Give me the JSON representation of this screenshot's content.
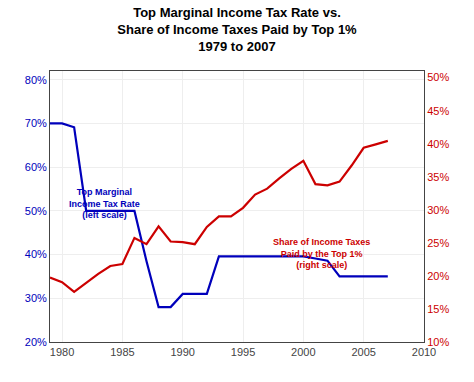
{
  "chart_data": {
    "type": "line",
    "title": "Top Marginal Income Tax Rate vs.\nShare of Income Taxes Paid by Top 1%\n1979 to 2007",
    "x": [
      1979,
      1980,
      1981,
      1982,
      1983,
      1984,
      1985,
      1986,
      1987,
      1988,
      1989,
      1990,
      1991,
      1992,
      1993,
      1994,
      1995,
      1996,
      1997,
      1998,
      1999,
      2000,
      2001,
      2002,
      2003,
      2004,
      2005,
      2006,
      2007
    ],
    "series": [
      {
        "color": "#0000bb",
        "axis": "y",
        "values": [
          70,
          70,
          69.125,
          50,
          50,
          50,
          50,
          50,
          38.5,
          28,
          28,
          31,
          31,
          31,
          39.6,
          39.6,
          39.6,
          39.6,
          39.6,
          39.6,
          39.6,
          39.6,
          39.1,
          38.6,
          35,
          35,
          35,
          35,
          35
        ]
      },
      {
        "color": "#cc0000",
        "axis": "y2",
        "values": [
          19.75,
          19.05,
          17.58,
          19.0,
          20.3,
          21.5,
          21.8,
          25.75,
          24.8,
          27.5,
          25.2,
          25.1,
          24.8,
          27.4,
          29.0,
          29.0,
          30.3,
          32.3,
          33.2,
          34.75,
          36.2,
          37.42,
          33.89,
          33.71,
          34.27,
          36.7,
          39.38,
          39.9,
          40.42
        ]
      }
    ],
    "xlim": [
      1979,
      2010
    ],
    "xticks": [
      1980,
      1985,
      1990,
      1995,
      2000,
      2005,
      2010
    ],
    "ylim": [
      20,
      82
    ],
    "yticks": [
      {
        "value": 20,
        "label": "20%"
      },
      {
        "value": 30,
        "label": "30%"
      },
      {
        "value": 40,
        "label": "40%"
      },
      {
        "value": 50,
        "label": "50%"
      },
      {
        "value": 60,
        "label": "60%"
      },
      {
        "value": 70,
        "label": "70%"
      },
      {
        "value": 80,
        "label": "80%"
      }
    ],
    "y2lim": [
      10,
      51
    ],
    "y2ticks": [
      {
        "value": 10,
        "label": "10%"
      },
      {
        "value": 15,
        "label": "15%"
      },
      {
        "value": 20,
        "label": "20%"
      },
      {
        "value": 25,
        "label": "25%"
      },
      {
        "value": 30,
        "label": "30%"
      },
      {
        "value": 35,
        "label": "35%"
      },
      {
        "value": 40,
        "label": "40%"
      },
      {
        "value": 45,
        "label": "45%"
      },
      {
        "value": 50,
        "label": "50%"
      }
    ],
    "grid": true,
    "annotations": [
      {
        "text": "Top Marginal\nIncome Tax Rate\n(left scale)",
        "x": 1983.5,
        "y": 56,
        "color": "#0000bb"
      },
      {
        "text": "Share of Income Taxes\nPaid by the Top 1%\n(right scale)",
        "x": 2001.5,
        "y": 44.5,
        "color": "#cc0000"
      }
    ]
  }
}
